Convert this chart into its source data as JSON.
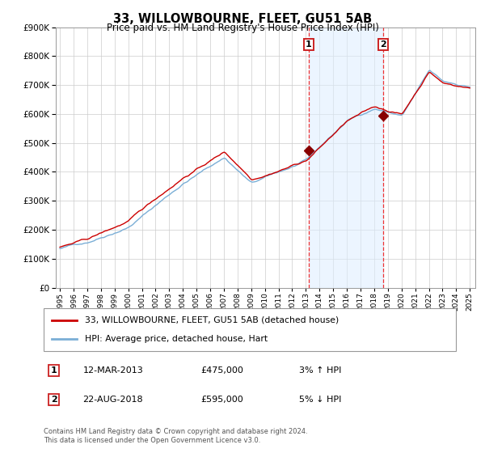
{
  "title": "33, WILLOWBOURNE, FLEET, GU51 5AB",
  "subtitle": "Price paid vs. HM Land Registry's House Price Index (HPI)",
  "legend_line1": "33, WILLOWBOURNE, FLEET, GU51 5AB (detached house)",
  "legend_line2": "HPI: Average price, detached house, Hart",
  "annotation1_label": "1",
  "annotation1_date": "12-MAR-2013",
  "annotation1_price": "£475,000",
  "annotation1_hpi": "3% ↑ HPI",
  "annotation2_label": "2",
  "annotation2_date": "22-AUG-2018",
  "annotation2_price": "£595,000",
  "annotation2_hpi": "5% ↓ HPI",
  "point1_year": 2013.2,
  "point1_value": 475000,
  "point2_year": 2018.65,
  "point2_value": 595000,
  "hpi_color": "#7aaed6",
  "price_color": "#cc0000",
  "marker_color": "#880000",
  "shade_color": "#ddeeff",
  "shade_alpha": 0.55,
  "dashed_color": "#ee3333",
  "grid_color": "#cccccc",
  "bg_color": "#ffffff",
  "ylim_min": 0,
  "ylim_max": 900000,
  "ytick_interval": 100000,
  "xlim_min": 1994.7,
  "xlim_max": 2025.4,
  "footer": "Contains HM Land Registry data © Crown copyright and database right 2024.\nThis data is licensed under the Open Government Licence v3.0."
}
